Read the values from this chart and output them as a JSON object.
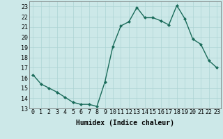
{
  "x": [
    0,
    1,
    2,
    3,
    4,
    5,
    6,
    7,
    8,
    9,
    10,
    11,
    12,
    13,
    14,
    15,
    16,
    17,
    18,
    19,
    20,
    21,
    22,
    23
  ],
  "y": [
    16.3,
    15.4,
    15.0,
    14.6,
    14.1,
    13.6,
    13.4,
    13.4,
    13.2,
    15.6,
    19.1,
    21.1,
    21.5,
    22.9,
    21.9,
    21.9,
    21.6,
    21.2,
    23.1,
    21.8,
    19.8,
    19.3,
    17.7,
    17.0
  ],
  "line_color": "#1a6b5a",
  "marker": "D",
  "marker_size": 2.0,
  "bg_color": "#cce8e8",
  "grid_color": "#add4d4",
  "xlabel": "Humidex (Indice chaleur)",
  "xlim": [
    -0.5,
    23.5
  ],
  "ylim": [
    13,
    23.5
  ],
  "yticks": [
    13,
    14,
    15,
    16,
    17,
    18,
    19,
    20,
    21,
    22,
    23
  ],
  "xticks": [
    0,
    1,
    2,
    3,
    4,
    5,
    6,
    7,
    8,
    9,
    10,
    11,
    12,
    13,
    14,
    15,
    16,
    17,
    18,
    19,
    20,
    21,
    22,
    23
  ],
  "xlabel_fontsize": 7,
  "tick_fontsize": 6,
  "line_width": 1.0
}
